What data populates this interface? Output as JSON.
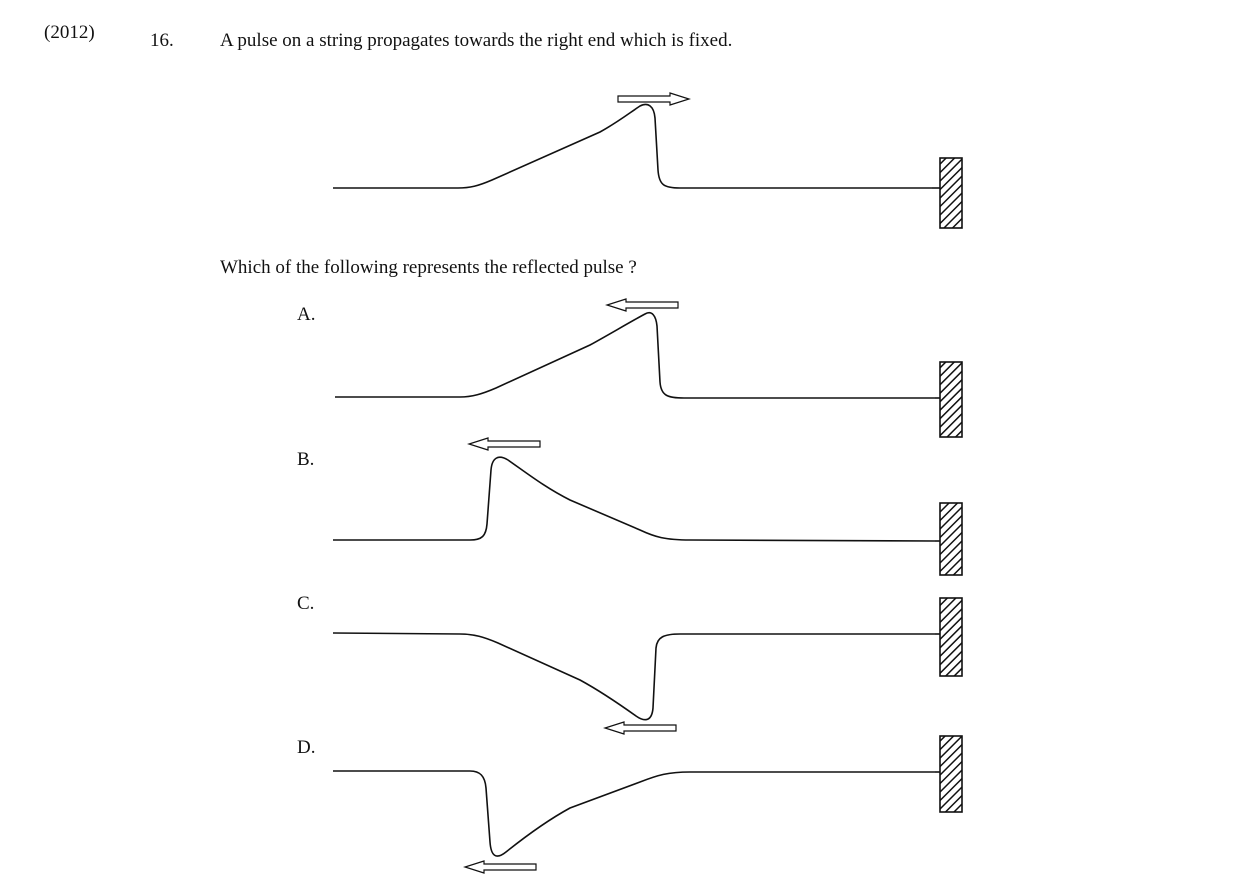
{
  "question": {
    "year": "(2012)",
    "number": "16.",
    "text": "A pulse on a string propagates towards the right end which is fixed.",
    "prompt": "Which of the following represents the reflected pulse ?"
  },
  "options": [
    {
      "label": "A.",
      "pulse": "upright",
      "direction": "left"
    },
    {
      "label": "B.",
      "pulse": "upright",
      "direction": "left"
    },
    {
      "label": "C.",
      "pulse": "inverted",
      "direction": "left"
    },
    {
      "label": "D.",
      "pulse": "inverted",
      "direction": "left"
    }
  ],
  "incident_pulse": {
    "pulse": "upright",
    "direction": "right"
  },
  "colors": {
    "ink": "#111111",
    "background": "#ffffff"
  }
}
